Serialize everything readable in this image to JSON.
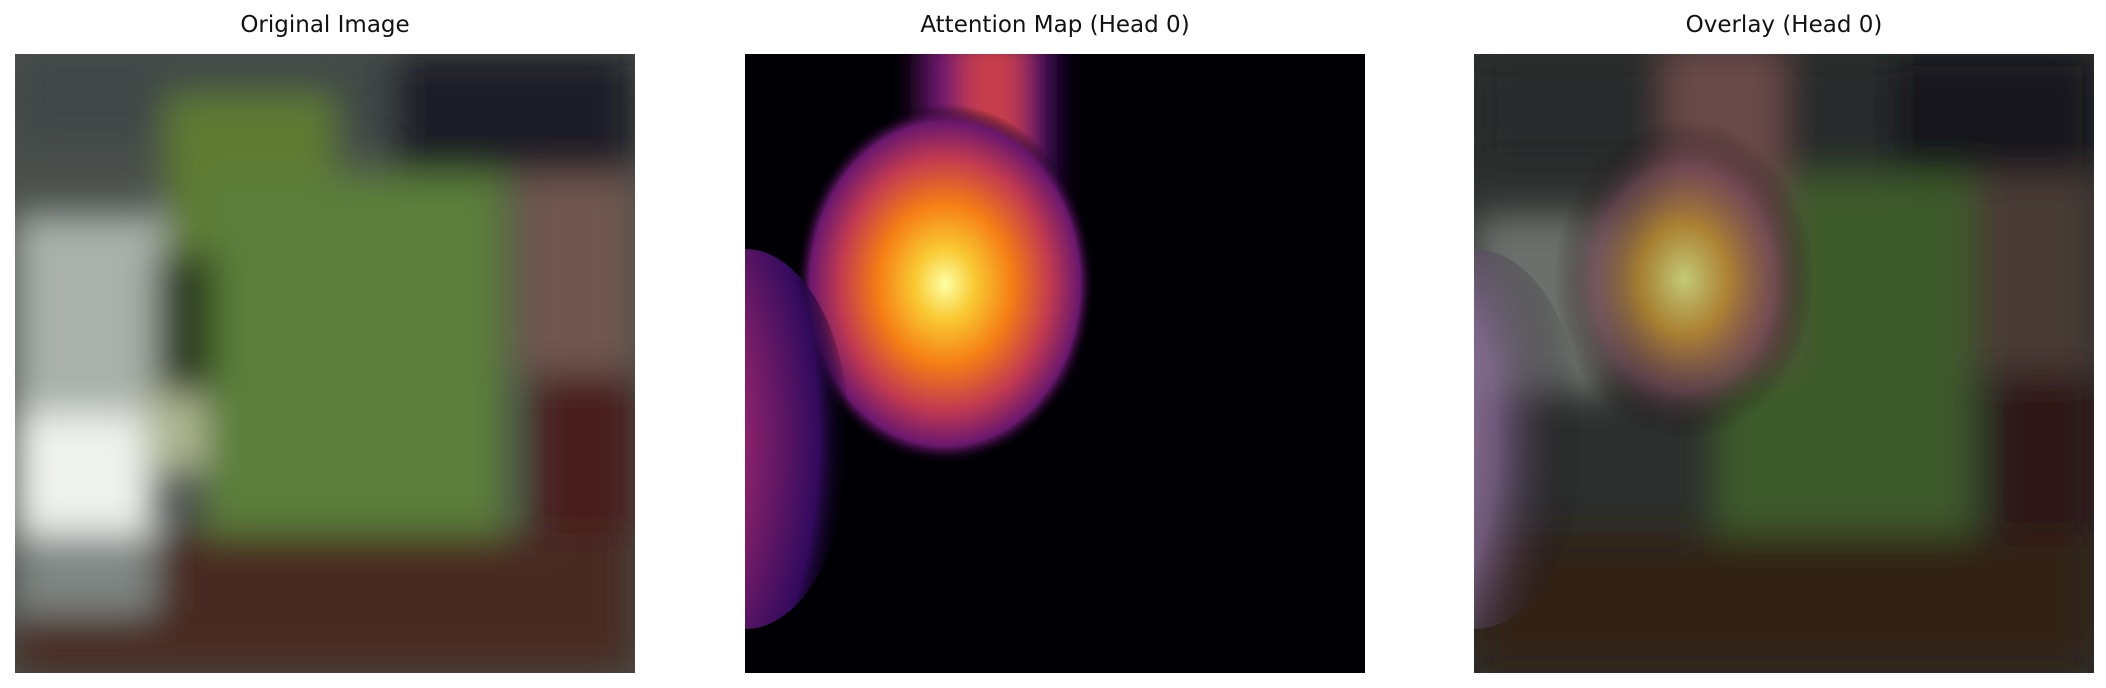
{
  "figure": {
    "panels": [
      {
        "title": "Original Image",
        "content": "photo"
      },
      {
        "title": "Attention Map (Head 0)",
        "content": "heatmap",
        "colormap": "inferno"
      },
      {
        "title": "Overlay (Head 0)",
        "content": "overlay"
      }
    ]
  }
}
